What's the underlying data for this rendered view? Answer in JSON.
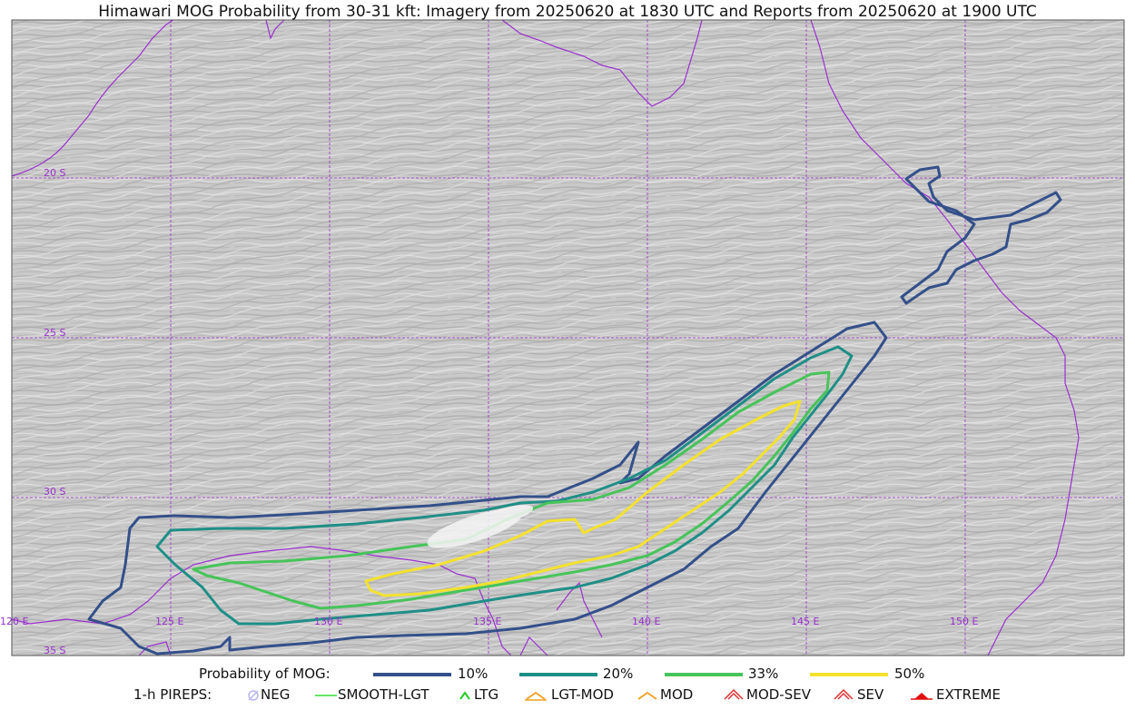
{
  "title": "Himawari MOG Probability from 30-31 kft: Imagery from 20250620 at 1830 UTC and Reports from 20250620 at 1900 UTC",
  "map": {
    "lat_labels": [
      "20 S",
      "25 S",
      "30 S",
      "35 S"
    ],
    "lon_labels": [
      "120 E",
      "125 E",
      "130 E",
      "135 E",
      "140 E",
      "145 E",
      "150 E"
    ],
    "gridline_color": "#9b30d0",
    "coastline_color": "#9b30d0"
  },
  "legend_probability": {
    "label": "Probability of MOG:",
    "items": [
      {
        "label": "10%",
        "color": "#34508a"
      },
      {
        "label": "20%",
        "color": "#1f8f86"
      },
      {
        "label": "33%",
        "color": "#47c45a"
      },
      {
        "label": "50%",
        "color": "#f4e12e"
      }
    ]
  },
  "legend_pireps": {
    "label": "1-h PIREPS:",
    "items": [
      {
        "label": "NEG",
        "icon": "neg-icon",
        "color": "#b8b8f0"
      },
      {
        "label": "SMOOTH-LGT",
        "icon": "smooth-lgt-icon",
        "color": "#33dd33"
      },
      {
        "label": "LTG",
        "icon": "ltg-icon",
        "color": "#22cc22"
      },
      {
        "label": "LGT-MOD",
        "icon": "lgt-mod-icon",
        "color": "#f0a020"
      },
      {
        "label": "MOD",
        "icon": "mod-icon",
        "color": "#f0a020"
      },
      {
        "label": "MOD-SEV",
        "icon": "mod-sev-icon",
        "color": "#e03030"
      },
      {
        "label": "SEV",
        "icon": "sev-icon",
        "color": "#e03030"
      },
      {
        "label": "EXTREME",
        "icon": "extreme-icon",
        "color": "#e01010"
      }
    ]
  }
}
